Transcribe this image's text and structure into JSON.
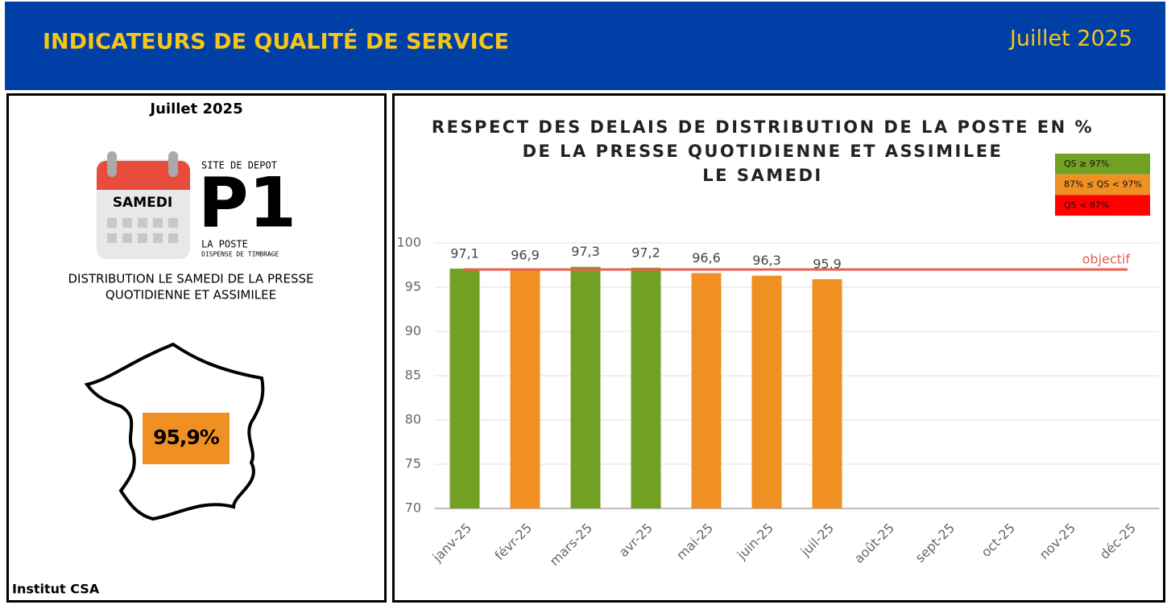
{
  "header": {
    "title": "INDICATEURS DE QUALITÉ DE SERVICE",
    "period": "Juillet 2025"
  },
  "panel": {
    "period": "Juillet 2025",
    "day": "SAMEDI",
    "site_label": "SITE DE DEPOT",
    "site_code": "P1",
    "site_name": "LA POSTE",
    "site_note": "DISPENSE DE TIMBRAGE",
    "description": [
      "DISTRIBUTION LE SAMEDI DE LA PRESSE",
      "QUOTIDIENNE ET ASSIMILEE"
    ],
    "kpi": "95,9%",
    "source": "Institut CSA"
  },
  "chart_data": {
    "type": "bar",
    "title": [
      "RESPECT DES DELAIS DE DISTRIBUTION DE LA POSTE EN %",
      "DE LA PRESSE QUOTIDIENNE ET ASSIMILEE",
      "LE SAMEDI"
    ],
    "categories": [
      "janv-25",
      "févr-25",
      "mars-25",
      "avr-25",
      "mai-25",
      "juin-25",
      "juil-25",
      "août-25",
      "sept-25",
      "oct-25",
      "nov-25",
      "déc-25"
    ],
    "values": [
      97.1,
      96.9,
      97.3,
      97.2,
      96.6,
      96.3,
      95.9,
      null,
      null,
      null,
      null,
      null
    ],
    "value_labels": [
      "97,1",
      "96,9",
      "97,3",
      "97,2",
      "96,6",
      "96,3",
      "95,9",
      null,
      null,
      null,
      null,
      null
    ],
    "colors": [
      "#72a025",
      "#f09022",
      "#72a025",
      "#72a025",
      "#f09022",
      "#f09022",
      "#f09022",
      null,
      null,
      null,
      null,
      null
    ],
    "target": {
      "value": 97,
      "label": "objectif",
      "color": "#e8604c"
    },
    "legend": [
      {
        "label": "QS ≥ 97%",
        "color": "#72a025"
      },
      {
        "label": "87% ≤ QS < 97%",
        "color": "#f09022"
      },
      {
        "label": "QS < 87%",
        "color": "#ff0000"
      }
    ],
    "ylim": [
      70,
      100
    ],
    "yticks": [
      70,
      75,
      80,
      85,
      90,
      95,
      100
    ],
    "grid": true
  }
}
